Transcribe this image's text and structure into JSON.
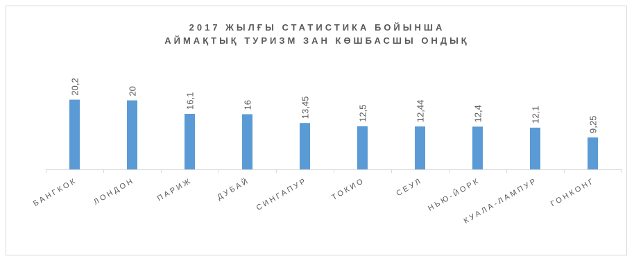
{
  "chart_data": {
    "type": "bar",
    "title": [
      "2017 ЖЫЛҒЫ СТАТИСТИКА БОЙЫНША",
      "АЙМАҚТЫҚ ТУРИЗМ ЗАН КӨШБАСШЫ ОНДЫҚ"
    ],
    "xlabel": "",
    "ylabel": "",
    "categories": [
      "БАНГКОК",
      "ЛОНДОН",
      "ПАРИЖ",
      "ДУБАЙ",
      "СИНГАПУР",
      "ТОКИО",
      "СЕУЛ",
      "НЬЮ-ЙОРК",
      "КУАЛА-ЛАМПУР",
      "ГОНКОНГ"
    ],
    "values": [
      20.2,
      20,
      16.1,
      16,
      13.45,
      12.5,
      12.44,
      12.4,
      12.1,
      9.25
    ],
    "data_labels": [
      "20,2",
      "20",
      "16,1",
      "16",
      "13,45",
      "12,5",
      "12,44",
      "12,4",
      "12,1",
      "9,25"
    ],
    "ylim": [
      0,
      33
    ],
    "grid": false,
    "legend": "none",
    "bar_color": "#5b9bd5",
    "axis_color": "#d9d9d9",
    "text_color": "#595959"
  }
}
